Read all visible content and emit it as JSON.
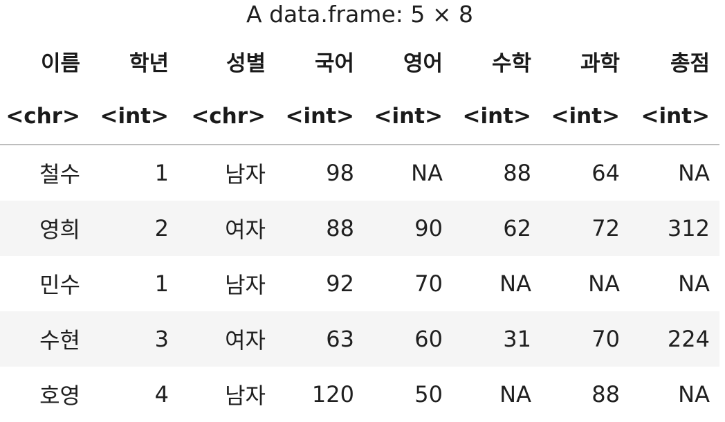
{
  "caption": "A data.frame: 5 × 8",
  "columns": [
    "이름",
    "학년",
    "성별",
    "국어",
    "영어",
    "수학",
    "과학",
    "총점"
  ],
  "column_types": [
    "<chr>",
    "<int>",
    "<chr>",
    "<int>",
    "<int>",
    "<int>",
    "<int>",
    "<int>"
  ],
  "rows": [
    [
      "철수",
      "1",
      "남자",
      "98",
      "NA",
      "88",
      "64",
      "NA"
    ],
    [
      "영희",
      "2",
      "여자",
      "88",
      "90",
      "62",
      "72",
      "312"
    ],
    [
      "민수",
      "1",
      "남자",
      "92",
      "70",
      "NA",
      "NA",
      "NA"
    ],
    [
      "수현",
      "3",
      "여자",
      "63",
      "60",
      "31",
      "70",
      "224"
    ],
    [
      "호영",
      "4",
      "남자",
      "120",
      "50",
      "NA",
      "88",
      "NA"
    ]
  ]
}
